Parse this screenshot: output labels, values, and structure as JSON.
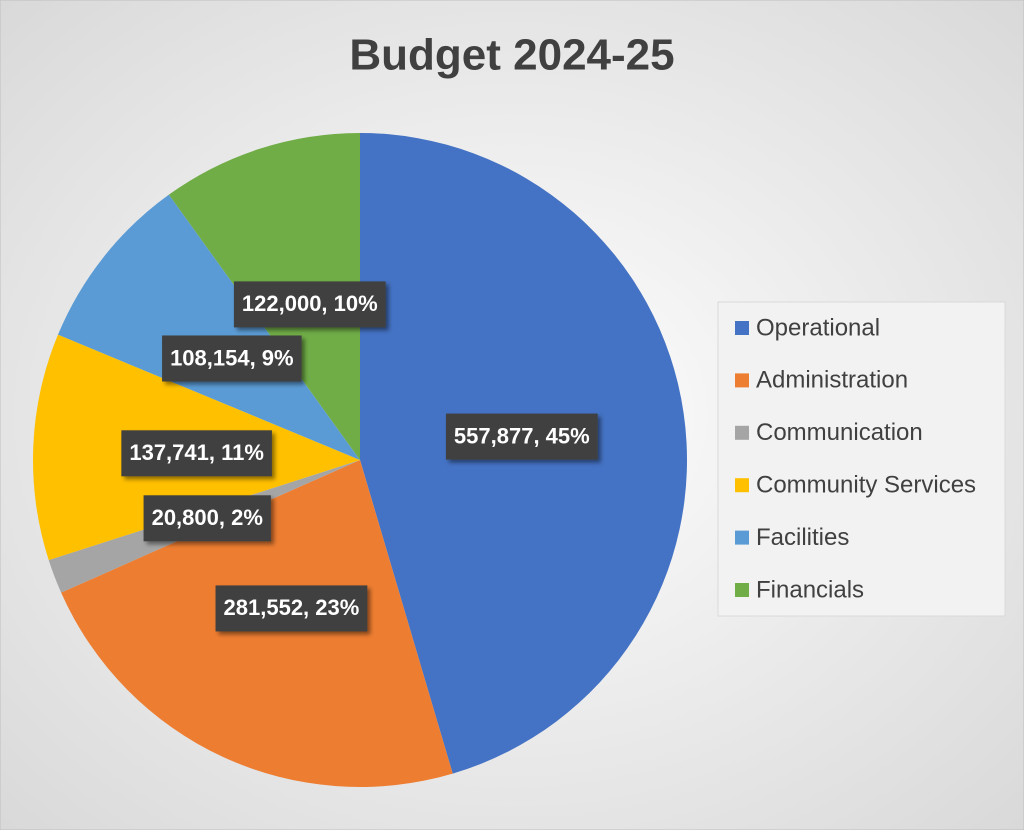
{
  "chart_data": {
    "type": "pie",
    "title": "Budget 2024-25",
    "categories": [
      "Operational",
      "Administration",
      "Communication",
      "Community Services",
      "Facilities",
      "Financials"
    ],
    "values": [
      557877,
      281552,
      20800,
      137741,
      108154,
      122000
    ],
    "value_labels": [
      "557,877, 45%",
      "281,552, 23%",
      "20,800, 2%",
      "137,741, 11%",
      "108,154, 9%",
      "122,000, 10%"
    ],
    "colors": [
      "#4472c4",
      "#ed7d31",
      "#a5a5a5",
      "#ffc000",
      "#5b9bd5",
      "#70ad47"
    ],
    "legend": "right"
  }
}
